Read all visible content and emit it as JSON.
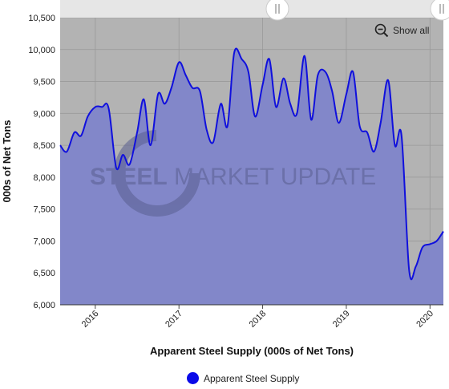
{
  "controls": {
    "show_all_label": "Show all"
  },
  "watermark": {
    "text_bold": "STEEL",
    "text_regular": " MARKET UPDATE"
  },
  "colors": {
    "plot_bg": "#b3b3b3",
    "area_fill": "#8287c9",
    "line": "#1010dd",
    "legend_dot": "#0a0ae8",
    "watermark": "#5a5f8f"
  },
  "chart_data": {
    "type": "area",
    "title": "",
    "xlabel": "Apparent Steel Supply (000s of Net Tons)",
    "ylabel": "000s of Net Tons",
    "ylim": [
      6000,
      10500
    ],
    "xlim": [
      2015.58,
      2020.16
    ],
    "grid": true,
    "legend_position": "bottom-center",
    "y_ticks": [
      6000,
      6500,
      7000,
      7500,
      8000,
      8500,
      9000,
      9500,
      10000,
      10500
    ],
    "y_tick_labels": [
      "6,000",
      "6,500",
      "7,000",
      "7,500",
      "8,000",
      "8,500",
      "9,000",
      "9,500",
      "10,000",
      "10,500"
    ],
    "x_ticks": [
      2016,
      2017,
      2018,
      2019,
      2020
    ],
    "x_tick_labels": [
      "2016",
      "2017",
      "2018",
      "2019",
      "2020"
    ],
    "series": [
      {
        "name": "Apparent Steel Supply",
        "x": [
          2015.58,
          2015.66,
          2015.75,
          2015.83,
          2015.91,
          2016.0,
          2016.08,
          2016.16,
          2016.25,
          2016.33,
          2016.41,
          2016.5,
          2016.58,
          2016.66,
          2016.75,
          2016.83,
          2016.91,
          2017.0,
          2017.08,
          2017.16,
          2017.25,
          2017.33,
          2017.41,
          2017.5,
          2017.58,
          2017.66,
          2017.75,
          2017.83,
          2017.91,
          2018.0,
          2018.08,
          2018.16,
          2018.25,
          2018.33,
          2018.41,
          2018.5,
          2018.58,
          2018.66,
          2018.75,
          2018.83,
          2018.91,
          2019.0,
          2019.08,
          2019.16,
          2019.25,
          2019.33,
          2019.41,
          2019.5,
          2019.58,
          2019.66,
          2019.75,
          2019.83,
          2019.91,
          2020.0,
          2020.08,
          2020.16
        ],
        "y": [
          8500,
          8400,
          8700,
          8650,
          8950,
          9100,
          9100,
          9080,
          8150,
          8350,
          8200,
          8700,
          9220,
          8500,
          9300,
          9150,
          9400,
          9800,
          9600,
          9400,
          9350,
          8750,
          8550,
          9150,
          8800,
          9950,
          9850,
          9650,
          8950,
          9450,
          9850,
          9100,
          9550,
          9150,
          9000,
          9900,
          8900,
          9600,
          9650,
          9350,
          8850,
          9300,
          9650,
          8800,
          8700,
          8400,
          8850,
          9520,
          8500,
          8650,
          6550,
          6600,
          6900,
          6950,
          7000,
          7150
        ]
      }
    ]
  }
}
